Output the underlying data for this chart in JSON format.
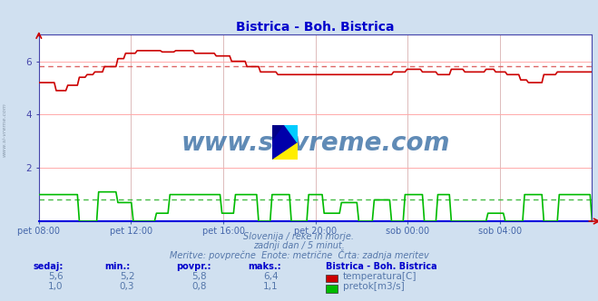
{
  "title": "Bistrica - Boh. Bistrica",
  "title_color": "#0000cc",
  "bg_color": "#d0e0f0",
  "plot_bg_color": "#ffffff",
  "grid_color": "#ffaaaa",
  "grid_x_color": "#ddcccc",
  "axis_color": "#4444aa",
  "bottom_spine_color": "#0000dd",
  "xlabel_color": "#4466aa",
  "text_color": "#5577aa",
  "x_labels": [
    "pet 08:00",
    "pet 12:00",
    "pet 16:00",
    "pet 20:00",
    "sob 00:00",
    "sob 04:00"
  ],
  "x_ticks_norm": [
    0.0,
    0.1667,
    0.3333,
    0.5,
    0.6667,
    0.8333
  ],
  "yticks": [
    2,
    4,
    6
  ],
  "temp_avg": 5.8,
  "flow_avg": 0.8,
  "temp_color": "#cc0000",
  "flow_color": "#00bb00",
  "dotted_color_temp": "#dd6666",
  "dotted_color_flow": "#44bb44",
  "watermark": "www.si-vreme.com",
  "watermark_color": "#4477aa",
  "left_label": "www.si-vreme.com",
  "left_label_color": "#8899aa",
  "subtitle1": "Slovenija / reke in morje.",
  "subtitle2": "zadnji dan / 5 minut.",
  "subtitle3": "Meritve: povprečne  Enote: metrične  Črta: zadnja meritev",
  "legend_title": "Bistrica - Boh. Bistrica",
  "legend_items": [
    {
      "label": "temperatura[C]",
      "color": "#cc0000"
    },
    {
      "label": "pretok[m3/s]",
      "color": "#00bb00"
    }
  ],
  "table_headers": [
    "sedaj:",
    "min.:",
    "povpr.:",
    "maks.:"
  ],
  "table_rows": [
    [
      "5,6",
      "5,2",
      "5,8",
      "6,4"
    ],
    [
      "1,0",
      "0,3",
      "0,8",
      "1,1"
    ]
  ]
}
